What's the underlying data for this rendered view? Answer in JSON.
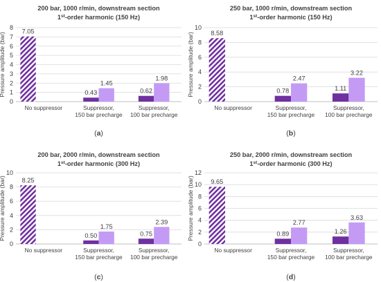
{
  "chart_data": [
    {
      "type": "bar",
      "panel_label": "(a)",
      "title": "200 bar, 1000 r/min, downstream section",
      "subtitle": "1st-order harmonic (150 Hz)",
      "ylabel": "Pressure amplitude (bar)",
      "ylim": [
        0,
        8
      ],
      "yticks": [
        0,
        1,
        2,
        3,
        4,
        5,
        6,
        7,
        8
      ],
      "categories": [
        "No suppressor",
        "Suppressor,\n150 bar precharge",
        "Suppressor,\n100 bar precharge"
      ],
      "bars": [
        {
          "category": 0,
          "slot": "center",
          "value": 7.05,
          "label": "7.05",
          "style": "hatched"
        },
        {
          "category": 1,
          "slot": "left",
          "value": 0.43,
          "label": "0.43",
          "style": "dark"
        },
        {
          "category": 1,
          "slot": "right",
          "value": 1.45,
          "label": "1.45",
          "style": "light"
        },
        {
          "category": 2,
          "slot": "left",
          "value": 0.62,
          "label": "0.62",
          "style": "dark"
        },
        {
          "category": 2,
          "slot": "right",
          "value": 1.98,
          "label": "1.98",
          "style": "light"
        }
      ]
    },
    {
      "type": "bar",
      "panel_label": "(b)",
      "title": "250 bar, 1000 r/min, downstream section",
      "subtitle": "1st-order harmonic (150 Hz)",
      "ylabel": "Pressure amplitude (bar)",
      "ylim": [
        0,
        10
      ],
      "yticks": [
        0,
        2,
        4,
        6,
        8,
        10
      ],
      "categories": [
        "No suppressor",
        "Suppressor,\n150 bar precharge",
        "Suppressor,\n100 bar precharge"
      ],
      "bars": [
        {
          "category": 0,
          "slot": "center",
          "value": 8.58,
          "label": "8.58",
          "style": "hatched"
        },
        {
          "category": 1,
          "slot": "left",
          "value": 0.78,
          "label": "0.78",
          "style": "dark"
        },
        {
          "category": 1,
          "slot": "right",
          "value": 2.47,
          "label": "2.47",
          "style": "light"
        },
        {
          "category": 2,
          "slot": "left",
          "value": 1.11,
          "label": "1.11",
          "style": "dark"
        },
        {
          "category": 2,
          "slot": "right",
          "value": 3.22,
          "label": "3.22",
          "style": "light"
        }
      ]
    },
    {
      "type": "bar",
      "panel_label": "(c)",
      "title": "200 bar, 2000 r/min, downstream section",
      "subtitle": "1st-order harmonic (300 Hz)",
      "ylabel": "Pressure amplitude (bar)",
      "ylim": [
        0,
        10
      ],
      "yticks": [
        0,
        2,
        4,
        6,
        8,
        10
      ],
      "categories": [
        "No suppressor",
        "Suppressor,\n150 bar precharge",
        "Suppressor,\n100 bar precharge"
      ],
      "bars": [
        {
          "category": 0,
          "slot": "center",
          "value": 8.25,
          "label": "8.25",
          "style": "hatched"
        },
        {
          "category": 1,
          "slot": "left",
          "value": 0.5,
          "label": "0.50",
          "style": "dark"
        },
        {
          "category": 1,
          "slot": "right",
          "value": 1.75,
          "label": "1.75",
          "style": "light"
        },
        {
          "category": 2,
          "slot": "left",
          "value": 0.75,
          "label": "0.75",
          "style": "dark"
        },
        {
          "category": 2,
          "slot": "right",
          "value": 2.39,
          "label": "2.39",
          "style": "light"
        }
      ]
    },
    {
      "type": "bar",
      "panel_label": "(d)",
      "title": "250 bar, 2000 r/min, downstream section",
      "subtitle": "1st-order harmonic (300 Hz)",
      "ylabel": "Pressure amplitude (bar)",
      "ylim": [
        0,
        12
      ],
      "yticks": [
        0,
        2,
        4,
        6,
        8,
        10,
        12
      ],
      "categories": [
        "No suppressor",
        "Suppressor,\n150 bar precharge",
        "Suppressor,\n100 bar precharge"
      ],
      "bars": [
        {
          "category": 0,
          "slot": "center",
          "value": 9.65,
          "label": "9.65",
          "style": "hatched"
        },
        {
          "category": 1,
          "slot": "left",
          "value": 0.89,
          "label": "0.89",
          "style": "dark"
        },
        {
          "category": 1,
          "slot": "right",
          "value": 2.77,
          "label": "2.77",
          "style": "light"
        },
        {
          "category": 2,
          "slot": "left",
          "value": 1.26,
          "label": "1.26",
          "style": "dark"
        },
        {
          "category": 2,
          "slot": "right",
          "value": 3.63,
          "label": "3.63",
          "style": "light"
        }
      ]
    }
  ],
  "colors": {
    "dark": "#7030a0",
    "light": "#c39bf5",
    "hatch": "#7030a0",
    "grid": "#d9d9d9",
    "axis": "#bfbfbf",
    "text": "#404040"
  }
}
